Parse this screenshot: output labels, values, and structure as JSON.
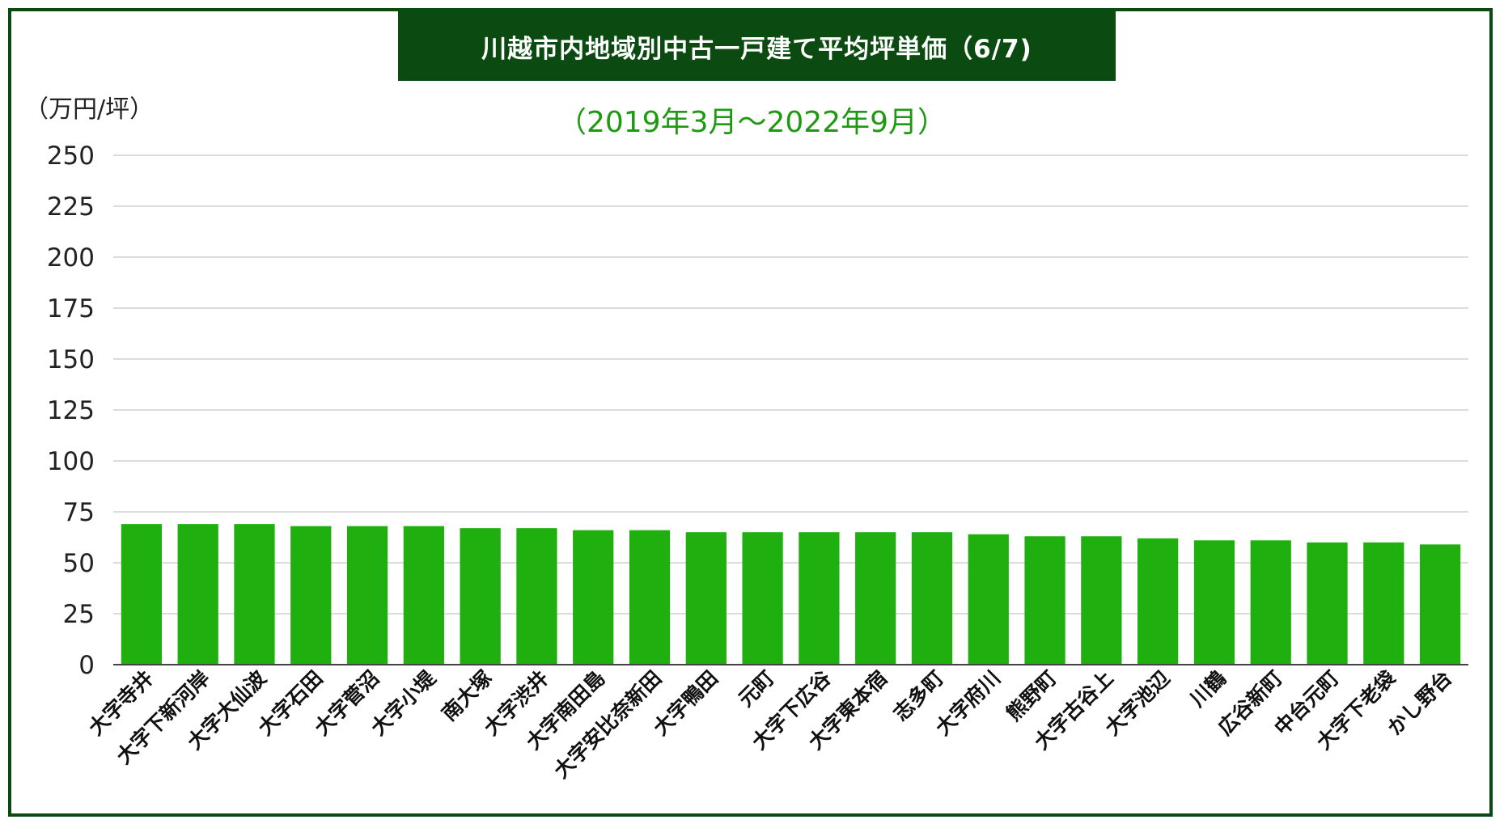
{
  "chart_data": {
    "type": "bar",
    "title": "川越市内地域別中古一戸建て平均坪単価（6/7)",
    "subtitle": "（2019年3月～2022年9月）",
    "ylabel": "（万円/坪）",
    "xlabel": "",
    "ylim": [
      0,
      250
    ],
    "yticks": [
      0,
      25,
      50,
      75,
      100,
      125,
      150,
      175,
      200,
      225,
      250
    ],
    "grid": true,
    "bar_color": "#1fb00f",
    "categories": [
      "大字寺井",
      "大字下新河岸",
      "大字大仙波",
      "大字石田",
      "大字菅沼",
      "大字小堤",
      "南大塚",
      "大字渋井",
      "大字南田島",
      "大字安比奈新田",
      "大字鴨田",
      "元町",
      "大字下広谷",
      "大字東本宿",
      "志多町",
      "大字府川",
      "熊野町",
      "大字古谷上",
      "大字池辺",
      "川鶴",
      "広谷新町",
      "中台元町",
      "大字下老袋",
      "かし野台"
    ],
    "values": [
      69,
      69,
      69,
      68,
      68,
      68,
      67,
      67,
      66,
      66,
      65,
      65,
      65,
      65,
      65,
      64,
      63,
      63,
      62,
      61,
      61,
      60,
      60,
      59
    ]
  },
  "colors": {
    "frame": "#0b4a10",
    "title_bg": "#0b4a10",
    "title_text": "#ffffff",
    "subtitle": "#1e9a12",
    "bar": "#1fb00f",
    "grid": "#d0d0d0"
  }
}
